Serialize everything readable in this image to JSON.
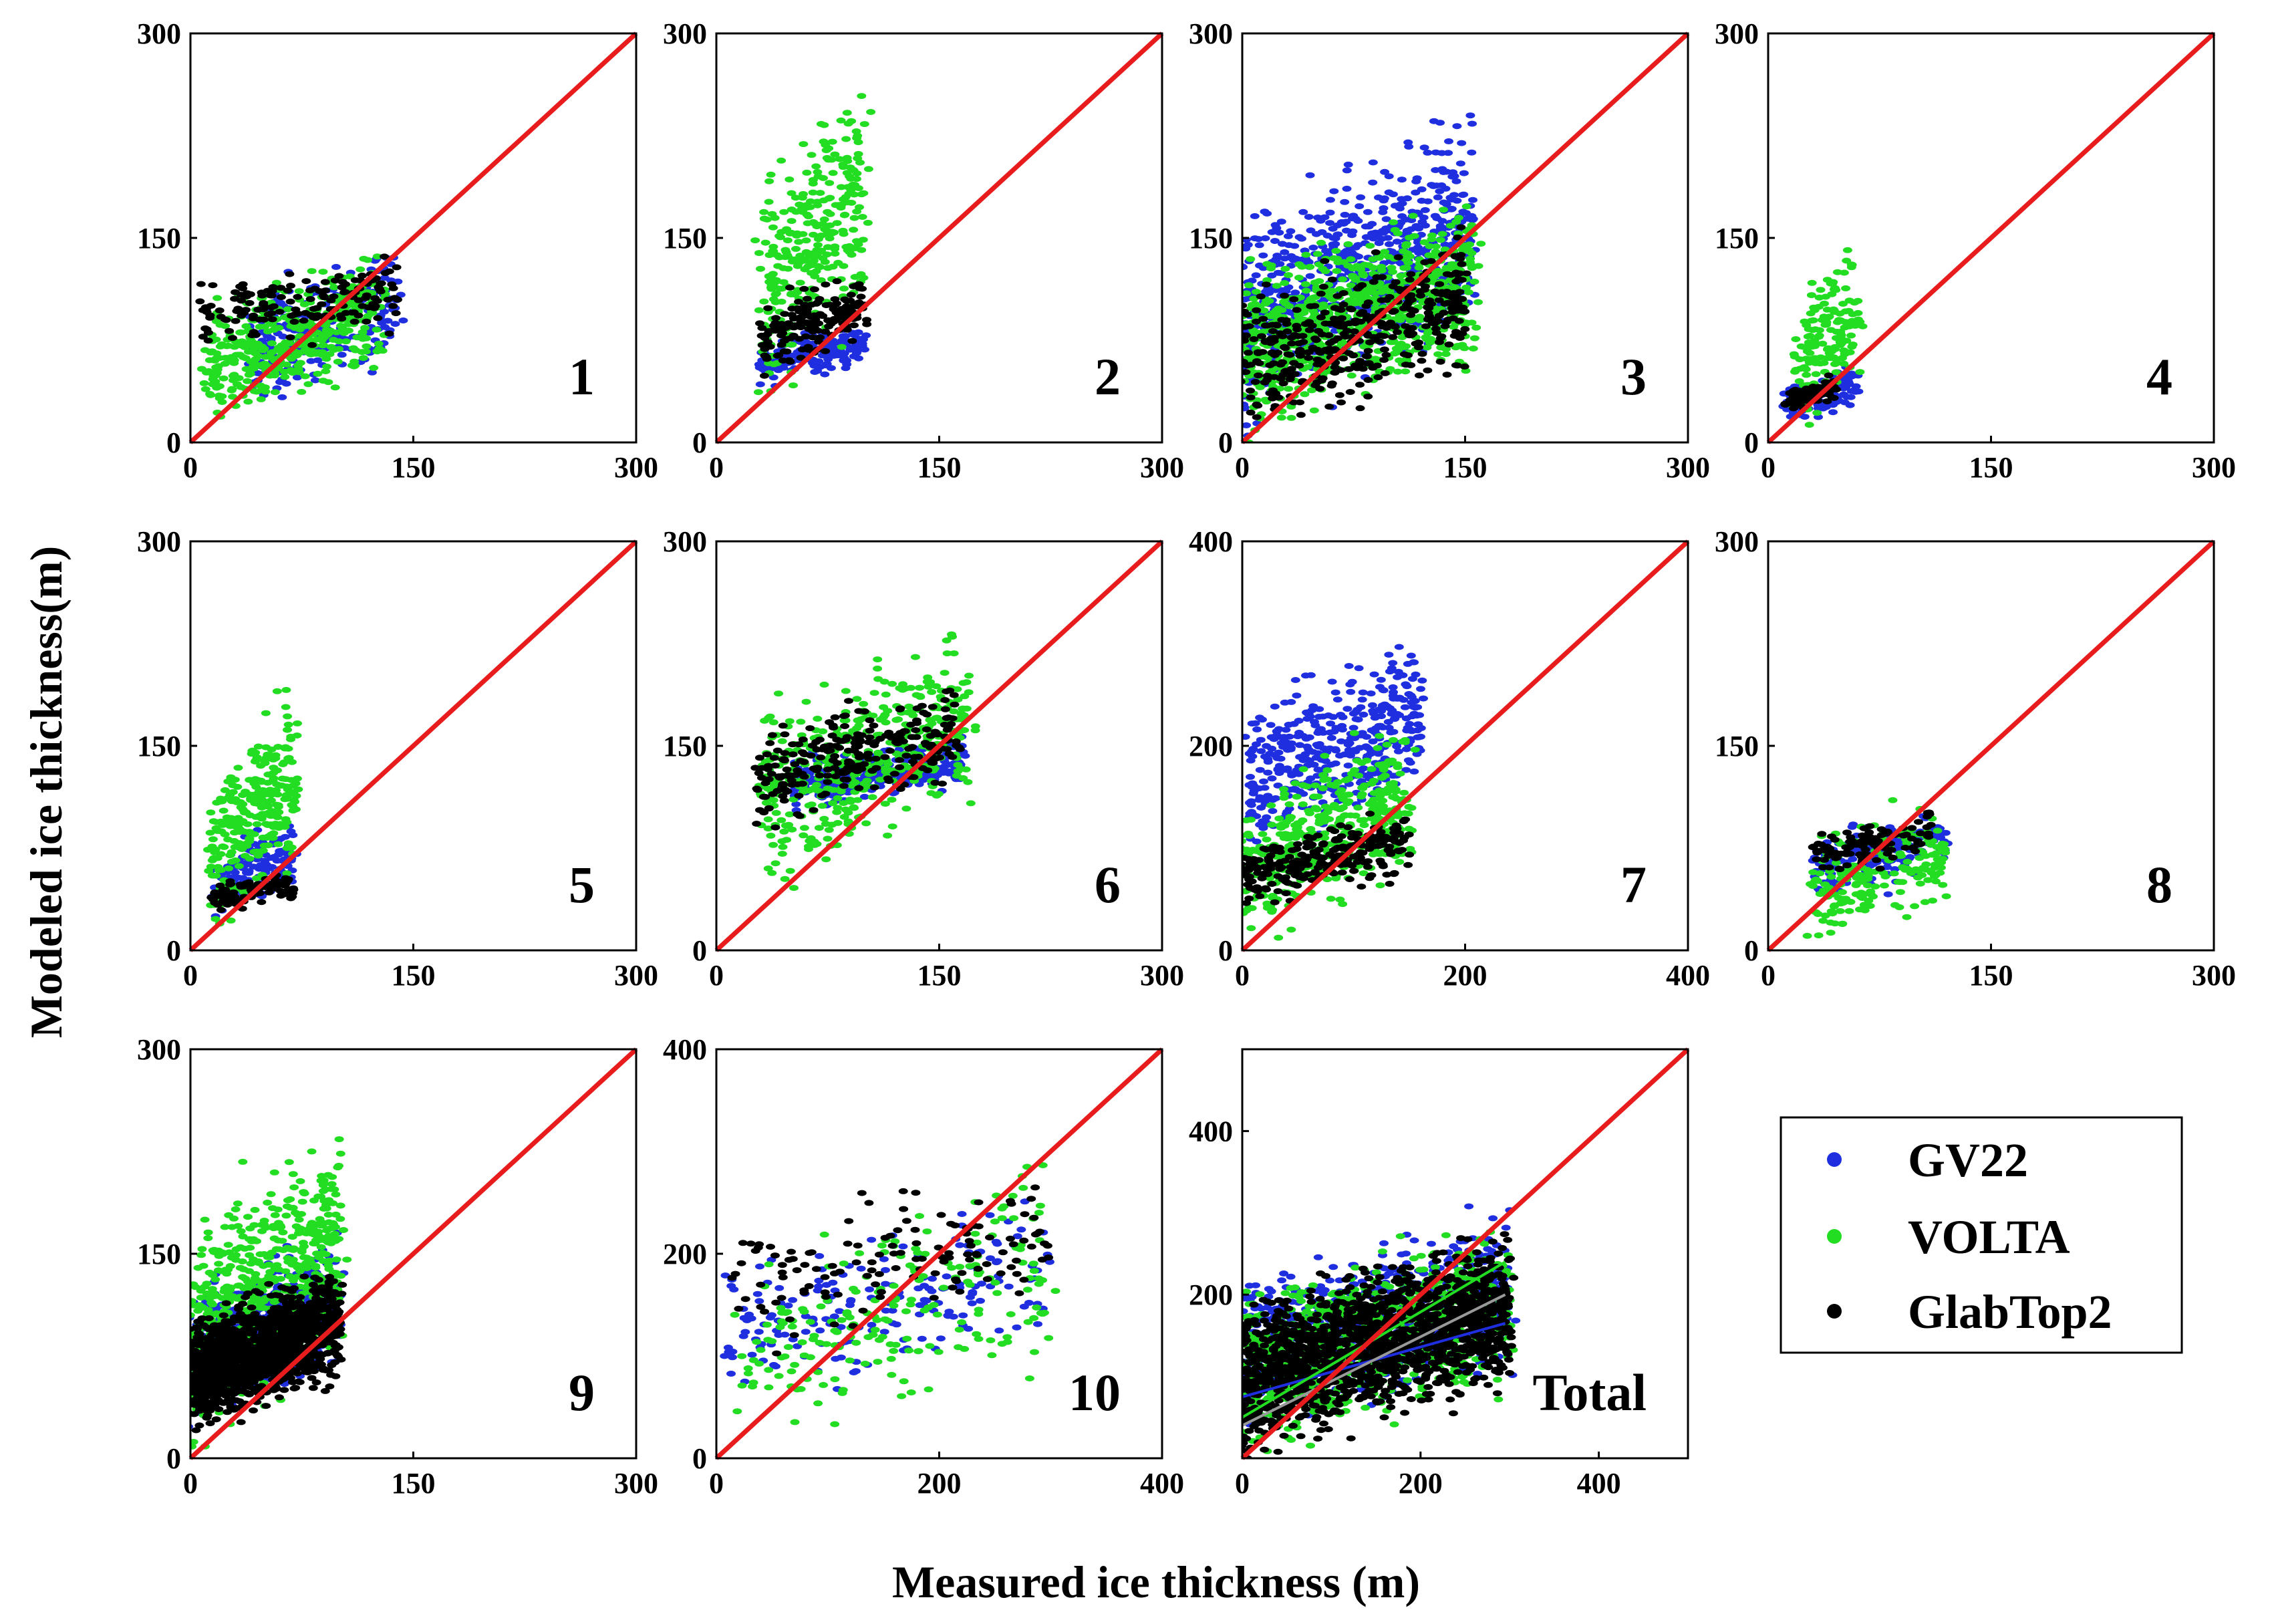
{
  "chart_data": {
    "type": "scatter",
    "title": "",
    "xlabel": "Measured ice thickness (m)",
    "ylabel": "Modeled ice thickness(m)",
    "legend": {
      "position": "bottom-right",
      "entries": [
        {
          "name": "GV22",
          "color": "#1f2fe0"
        },
        {
          "name": "VOLTA",
          "color": "#22dd22"
        },
        {
          "name": "GlabTop2",
          "color": "#000000"
        }
      ]
    },
    "reference_line": {
      "name": "1:1 line",
      "color": "#e81c1c"
    },
    "panels": [
      {
        "label": "1",
        "xlim": [
          0,
          300
        ],
        "ylim": [
          0,
          300
        ],
        "xticks": [
          "0",
          "150",
          "300"
        ],
        "yticks": [
          "0",
          "150",
          "300"
        ],
        "series": [
          {
            "name": "GV22",
            "cx": [
              40,
              140
            ],
            "cy": [
              20,
              150
            ],
            "spread": 22,
            "n": 240
          },
          {
            "name": "VOLTA",
            "cx": [
              10,
              130
            ],
            "cy": [
              10,
              145
            ],
            "spread": 28,
            "n": 420
          },
          {
            "name": "GlabTop2",
            "cx": [
              5,
              140
            ],
            "cy": [
              60,
              140
            ],
            "spread": 14,
            "n": 160
          }
        ]
      },
      {
        "label": "2",
        "xlim": [
          0,
          300
        ],
        "ylim": [
          0,
          300
        ],
        "xticks": [
          "0",
          "150",
          "300"
        ],
        "yticks": [
          "0",
          "150",
          "300"
        ],
        "series": [
          {
            "name": "GV22",
            "cx": [
              30,
              100
            ],
            "cy": [
              40,
              90
            ],
            "spread": 14,
            "n": 160
          },
          {
            "name": "VOLTA",
            "cx": [
              30,
              100
            ],
            "cy": [
              20,
              275
            ],
            "spread": 40,
            "n": 300
          },
          {
            "name": "GlabTop2",
            "cx": [
              30,
              100
            ],
            "cy": [
              45,
              130
            ],
            "spread": 15,
            "n": 160
          }
        ]
      },
      {
        "label": "3",
        "xlim": [
          0,
          300
        ],
        "ylim": [
          0,
          300
        ],
        "xticks": [
          "0",
          "150",
          "300"
        ],
        "yticks": [
          "0",
          "150",
          "300"
        ],
        "series": [
          {
            "name": "GV22",
            "cx": [
              0,
              155
            ],
            "cy": [
              5,
              245
            ],
            "spread": 40,
            "n": 700
          },
          {
            "name": "VOLTA",
            "cx": [
              0,
              155
            ],
            "cy": [
              0,
              185
            ],
            "spread": 38,
            "n": 800
          },
          {
            "name": "GlabTop2",
            "cx": [
              0,
              150
            ],
            "cy": [
              0,
              160
            ],
            "spread": 30,
            "n": 400
          }
        ]
      },
      {
        "label": "4",
        "xlim": [
          0,
          300
        ],
        "ylim": [
          0,
          300
        ],
        "xticks": [
          "0",
          "150",
          "300"
        ],
        "yticks": [
          "0",
          "150",
          "300"
        ],
        "series": [
          {
            "name": "GV22",
            "cx": [
              10,
              60
            ],
            "cy": [
              10,
              60
            ],
            "spread": 12,
            "n": 100
          },
          {
            "name": "VOLTA",
            "cx": [
              20,
              60
            ],
            "cy": [
              0,
              160
            ],
            "spread": 30,
            "n": 160
          },
          {
            "name": "GlabTop2",
            "cx": [
              10,
              45
            ],
            "cy": [
              20,
              50
            ],
            "spread": 10,
            "n": 70
          }
        ]
      },
      {
        "label": "5",
        "xlim": [
          0,
          300
        ],
        "ylim": [
          0,
          300
        ],
        "xticks": [
          "0",
          "150",
          "300"
        ],
        "yticks": [
          "0",
          "150",
          "300"
        ],
        "series": [
          {
            "name": "GV22",
            "cx": [
              15,
              70
            ],
            "cy": [
              20,
              100
            ],
            "spread": 18,
            "n": 160
          },
          {
            "name": "VOLTA",
            "cx": [
              15,
              70
            ],
            "cy": [
              5,
              200
            ],
            "spread": 35,
            "n": 280
          },
          {
            "name": "GlabTop2",
            "cx": [
              10,
              70
            ],
            "cy": [
              25,
              60
            ],
            "spread": 10,
            "n": 90
          }
        ]
      },
      {
        "label": "6",
        "xlim": [
          0,
          300
        ],
        "ylim": [
          0,
          300
        ],
        "xticks": [
          "0",
          "150",
          "300"
        ],
        "yticks": [
          "0",
          "150",
          "300"
        ],
        "series": [
          {
            "name": "GV22",
            "cx": [
              50,
              170
            ],
            "cy": [
              100,
              160
            ],
            "spread": 14,
            "n": 260
          },
          {
            "name": "VOLTA",
            "cx": [
              30,
              170
            ],
            "cy": [
              40,
              245
            ],
            "spread": 30,
            "n": 420
          },
          {
            "name": "GlabTop2",
            "cx": [
              25,
              165
            ],
            "cy": [
              90,
              200
            ],
            "spread": 20,
            "n": 260
          }
        ]
      },
      {
        "label": "7",
        "xlim": [
          0,
          400
        ],
        "ylim": [
          0,
          400
        ],
        "xticks": [
          "0",
          "200",
          "400"
        ],
        "yticks": [
          "0",
          "200",
          "400"
        ],
        "series": [
          {
            "name": "GV22",
            "cx": [
              5,
              160
            ],
            "cy": [
              80,
              320
            ],
            "spread": 35,
            "n": 420
          },
          {
            "name": "VOLTA",
            "cx": [
              0,
              150
            ],
            "cy": [
              0,
              230
            ],
            "spread": 40,
            "n": 420
          },
          {
            "name": "GlabTop2",
            "cx": [
              0,
              150
            ],
            "cy": [
              40,
              145
            ],
            "spread": 25,
            "n": 240
          }
        ]
      },
      {
        "label": "8",
        "xlim": [
          0,
          300
        ],
        "ylim": [
          0,
          300
        ],
        "xticks": [
          "0",
          "150",
          "300"
        ],
        "yticks": [
          "0",
          "150",
          "300"
        ],
        "series": [
          {
            "name": "GV22",
            "cx": [
              30,
              120
            ],
            "cy": [
              30,
              110
            ],
            "spread": 18,
            "n": 170
          },
          {
            "name": "VOLTA",
            "cx": [
              30,
              120
            ],
            "cy": [
              0,
              120
            ],
            "spread": 25,
            "n": 200
          },
          {
            "name": "GlabTop2",
            "cx": [
              30,
              110
            ],
            "cy": [
              50,
              105
            ],
            "spread": 12,
            "n": 110
          }
        ]
      },
      {
        "label": "9",
        "xlim": [
          0,
          300
        ],
        "ylim": [
          0,
          300
        ],
        "xticks": [
          "0",
          "150",
          "300"
        ],
        "yticks": [
          "0",
          "150",
          "300"
        ],
        "series": [
          {
            "name": "GV22",
            "cx": [
              0,
              100
            ],
            "cy": [
              20,
              170
            ],
            "spread": 28,
            "n": 520
          },
          {
            "name": "VOLTA",
            "cx": [
              0,
              100
            ],
            "cy": [
              0,
              250
            ],
            "spread": 40,
            "n": 620
          },
          {
            "name": "GlabTop2",
            "cx": [
              0,
              100
            ],
            "cy": [
              20,
              140
            ],
            "spread": 22,
            "n": 1400
          }
        ]
      },
      {
        "label": "10",
        "xlim": [
          0,
          400
        ],
        "ylim": [
          0,
          400
        ],
        "xticks": [
          "0",
          "200",
          "400"
        ],
        "yticks": [
          "0",
          "200",
          "400"
        ],
        "series": [
          {
            "name": "GV22",
            "cx": [
              10,
              300
            ],
            "cy": [
              40,
              270
            ],
            "spread": 35,
            "n": 190
          },
          {
            "name": "VOLTA",
            "cx": [
              20,
              300
            ],
            "cy": [
              0,
              295
            ],
            "spread": 55,
            "n": 210
          },
          {
            "name": "GlabTop2",
            "cx": [
              10,
              300
            ],
            "cy": [
              90,
              290
            ],
            "spread": 40,
            "n": 130
          }
        ]
      },
      {
        "label": "Total",
        "xlim": [
          0,
          500
        ],
        "ylim": [
          0,
          500
        ],
        "xticks": [
          "0",
          "200",
          "400"
        ],
        "yticks": [
          "200",
          "400"
        ],
        "series": [
          {
            "name": "GV22",
            "cx": [
              0,
              300
            ],
            "cy": [
              20,
              310
            ],
            "spread": 45,
            "n": 700
          },
          {
            "name": "VOLTA",
            "cx": [
              0,
              300
            ],
            "cy": [
              0,
              290
            ],
            "spread": 45,
            "n": 900
          },
          {
            "name": "GlabTop2",
            "cx": [
              0,
              300
            ],
            "cy": [
              0,
              280
            ],
            "spread": 32,
            "n": 1500
          }
        ],
        "fit_lines": [
          {
            "color": "#1f2fe0",
            "x": [
              0,
              295
            ],
            "y": [
              75,
              165
            ]
          },
          {
            "color": "#22dd22",
            "x": [
              0,
              295
            ],
            "y": [
              50,
              240
            ]
          },
          {
            "color": "#999999",
            "x": [
              0,
              295
            ],
            "y": [
              40,
              200
            ]
          }
        ]
      }
    ]
  }
}
